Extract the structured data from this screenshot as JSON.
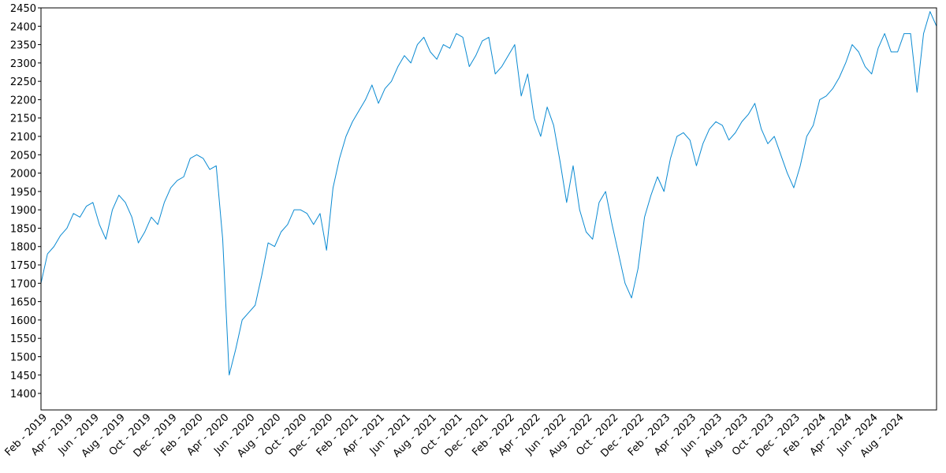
{
  "chart_data": {
    "type": "line",
    "color": "#0a8ad2",
    "categories": [
      null,
      "Feb - 2019",
      null,
      null,
      null,
      "Apr - 2019",
      null,
      null,
      null,
      "Jun - 2019",
      null,
      null,
      null,
      "Aug - 2019",
      null,
      null,
      null,
      "Oct - 2019",
      null,
      null,
      null,
      "Dec - 2019",
      null,
      null,
      null,
      "Feb - 2020",
      null,
      null,
      null,
      "Apr - 2020",
      null,
      null,
      null,
      "Jun - 2020",
      null,
      null,
      null,
      "Aug - 2020",
      null,
      null,
      null,
      "Oct - 2020",
      null,
      null,
      null,
      "Dec - 2020",
      null,
      null,
      null,
      "Feb - 2021",
      null,
      null,
      null,
      "Apr - 2021",
      null,
      null,
      null,
      "Jun - 2021",
      null,
      null,
      null,
      "Aug - 2021",
      null,
      null,
      null,
      "Oct - 2021",
      null,
      null,
      null,
      "Dec - 2021",
      null,
      null,
      null,
      "Feb - 2022",
      null,
      null,
      null,
      "Apr - 2022",
      null,
      null,
      null,
      "Jun - 2022",
      null,
      null,
      null,
      "Aug - 2022",
      null,
      null,
      null,
      "Oct - 2022",
      null,
      null,
      null,
      "Dec - 2022",
      null,
      null,
      null,
      "Feb - 2023",
      null,
      null,
      null,
      "Apr - 2023",
      null,
      null,
      null,
      "Jun - 2023",
      null,
      null,
      null,
      "Aug - 2023",
      null,
      null,
      null,
      "Oct - 2023",
      null,
      null,
      null,
      "Dec - 2023",
      null,
      null,
      null,
      "Feb - 2024",
      null,
      null,
      null,
      "Apr - 2024",
      null,
      null,
      null,
      "Jun - 2024",
      null,
      null,
      null,
      "Aug - 2024",
      null,
      null,
      null,
      null,
      null
    ],
    "values": [
      1700,
      1780,
      1800,
      1830,
      1850,
      1890,
      1880,
      1910,
      1920,
      1860,
      1820,
      1900,
      1940,
      1920,
      1880,
      1810,
      1840,
      1880,
      1860,
      1920,
      1960,
      1980,
      1990,
      2040,
      2050,
      2040,
      2010,
      2020,
      1820,
      1450,
      1520,
      1600,
      1620,
      1640,
      1720,
      1810,
      1800,
      1840,
      1860,
      1900,
      1900,
      1890,
      1860,
      1890,
      1790,
      1960,
      2040,
      2100,
      2140,
      2170,
      2200,
      2240,
      2190,
      2230,
      2250,
      2290,
      2320,
      2300,
      2350,
      2370,
      2330,
      2310,
      2350,
      2340,
      2380,
      2370,
      2290,
      2320,
      2360,
      2370,
      2270,
      2290,
      2320,
      2350,
      2210,
      2270,
      2150,
      2100,
      2180,
      2130,
      2030,
      1920,
      2020,
      1900,
      1840,
      1820,
      1920,
      1950,
      1860,
      1780,
      1700,
      1660,
      1740,
      1880,
      1940,
      1990,
      1950,
      2040,
      2100,
      2110,
      2090,
      2020,
      2080,
      2120,
      2140,
      2130,
      2090,
      2110,
      2140,
      2160,
      2190,
      2120,
      2080,
      2100,
      2050,
      2000,
      1960,
      2020,
      2100,
      2130,
      2200,
      2210,
      2230,
      2260,
      2300,
      2350,
      2330,
      2290,
      2270,
      2340,
      2380,
      2330,
      2330,
      2380,
      2380,
      2220,
      2380,
      2440,
      2400
    ],
    "ylim": [
      1355,
      2450
    ],
    "yticks": [
      1400,
      1450,
      1500,
      1550,
      1600,
      1650,
      1700,
      1750,
      1800,
      1850,
      1900,
      1950,
      2000,
      2050,
      2100,
      2150,
      2200,
      2250,
      2300,
      2350,
      2400,
      2450
    ],
    "grid": false
  }
}
